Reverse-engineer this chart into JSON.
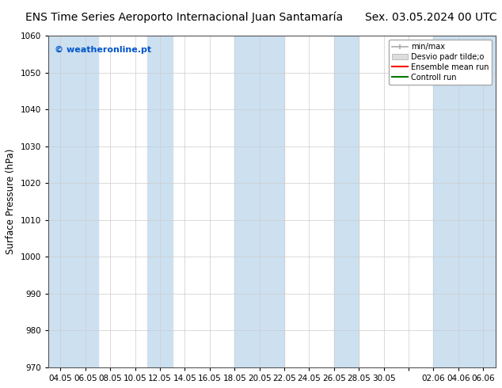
{
  "title_left": "ENS Time Series Aeroporto Internacional Juan Santamaría",
  "title_right": "Sex. 03.05.2024 00 UTC",
  "ylabel": "Surface Pressure (hPa)",
  "ylim": [
    970,
    1060
  ],
  "yticks": [
    970,
    980,
    990,
    1000,
    1010,
    1020,
    1030,
    1040,
    1050,
    1060
  ],
  "xtick_labels": [
    "04.05",
    "06.05",
    "08.05",
    "10.05",
    "12.05",
    "14.05",
    "16.05",
    "18.05",
    "20.05",
    "22.05",
    "24.05",
    "26.05",
    "28.05",
    "30.05",
    "",
    "02.06",
    "04.06",
    "06.06"
  ],
  "watermark": "© weatheronline.pt",
  "watermark_color": "#0055cc",
  "background_color": "#ffffff",
  "plot_bg_color": "#ffffff",
  "band_color": "#cce0f0",
  "legend_entries": [
    "min/max",
    "Desvio padr tilde;o",
    "Ensemble mean run",
    "Controll run"
  ],
  "legend_colors_line": [
    "#aaaaaa",
    "#cccccc",
    "#ff0000",
    "#007700"
  ],
  "title_fontsize": 10,
  "label_fontsize": 8.5,
  "tick_fontsize": 7.5
}
